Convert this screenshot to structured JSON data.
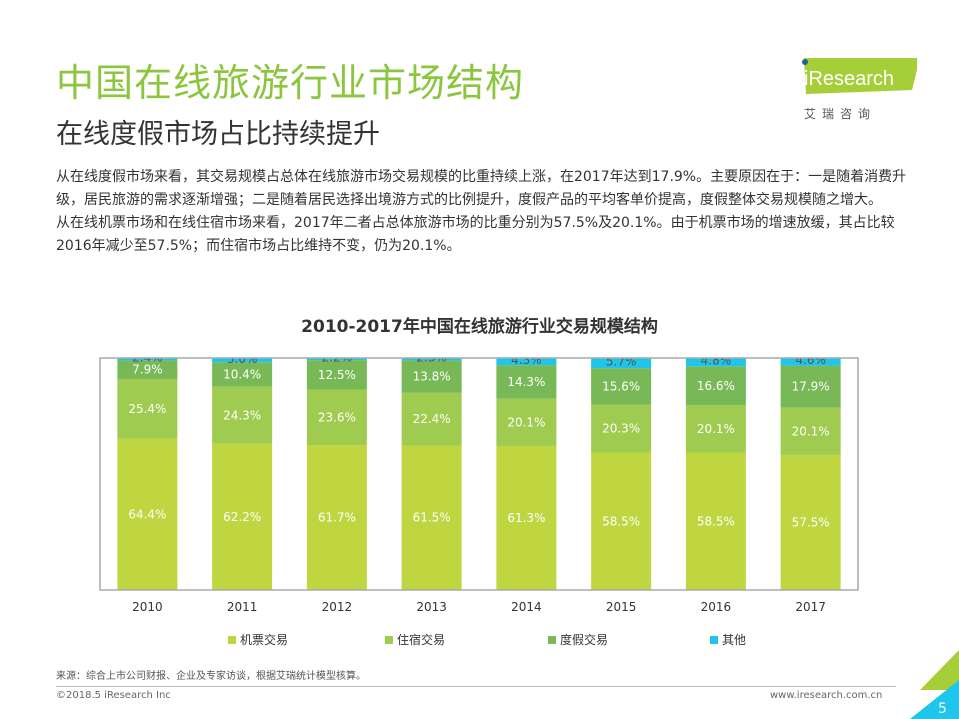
{
  "header": {
    "title": "中国在线旅游行业市场结构",
    "subtitle": "在线度假市场占比持续提升"
  },
  "logo": {
    "brand": "iResearch",
    "cn": "艾 瑞 咨 询"
  },
  "body": [
    "从在线度假市场来看，其交易规模占总体在线旅游市场交易规模的比重持续上涨，在2017年达到17.9%。主要原因在于：一是随着消费升级，居民旅游的需求逐渐增强；二是随着居民选择出境游方式的比例提升，度假产品的平均客单价提高，度假整体交易规模随之增大。",
    "从在线机票市场和在线住宿市场来看，2017年二者占总体旅游市场的比重分别为57.5%及20.1%。由于机票市场的增速放缓，其占比较2016年减少至57.5%；而住宿市场占比维持不变，仍为20.1%。"
  ],
  "chart_data": {
    "type": "bar",
    "stacked": true,
    "title": "2010-2017年中国在线旅游行业交易规模结构",
    "categories": [
      "2010",
      "2011",
      "2012",
      "2013",
      "2014",
      "2015",
      "2016",
      "2017"
    ],
    "ylim": [
      0,
      100
    ],
    "unit": "%",
    "legend": "bottom",
    "series": [
      {
        "name": "机票交易",
        "color": "#bfd641",
        "values": [
          64.4,
          62.2,
          61.7,
          61.5,
          61.3,
          58.5,
          58.5,
          57.5
        ]
      },
      {
        "name": "住宿交易",
        "color": "#9fcb50",
        "values": [
          25.4,
          24.3,
          23.6,
          22.4,
          20.1,
          20.3,
          20.1,
          20.1
        ]
      },
      {
        "name": "度假交易",
        "color": "#78b856",
        "values": [
          7.9,
          10.4,
          12.5,
          13.8,
          14.3,
          15.6,
          16.6,
          17.9
        ]
      },
      {
        "name": "其他",
        "color": "#1dc6ea",
        "values": [
          2.4,
          3.0,
          2.2,
          2.3,
          4.3,
          5.7,
          4.8,
          4.6
        ]
      }
    ]
  },
  "footer": {
    "source": "来源：综合上市公司财报、企业及专家访谈，根据艾瑞统计模型核算。",
    "copyright": "©2018.5 iResearch Inc",
    "url": "www.iresearch.com.cn",
    "page": "5"
  }
}
